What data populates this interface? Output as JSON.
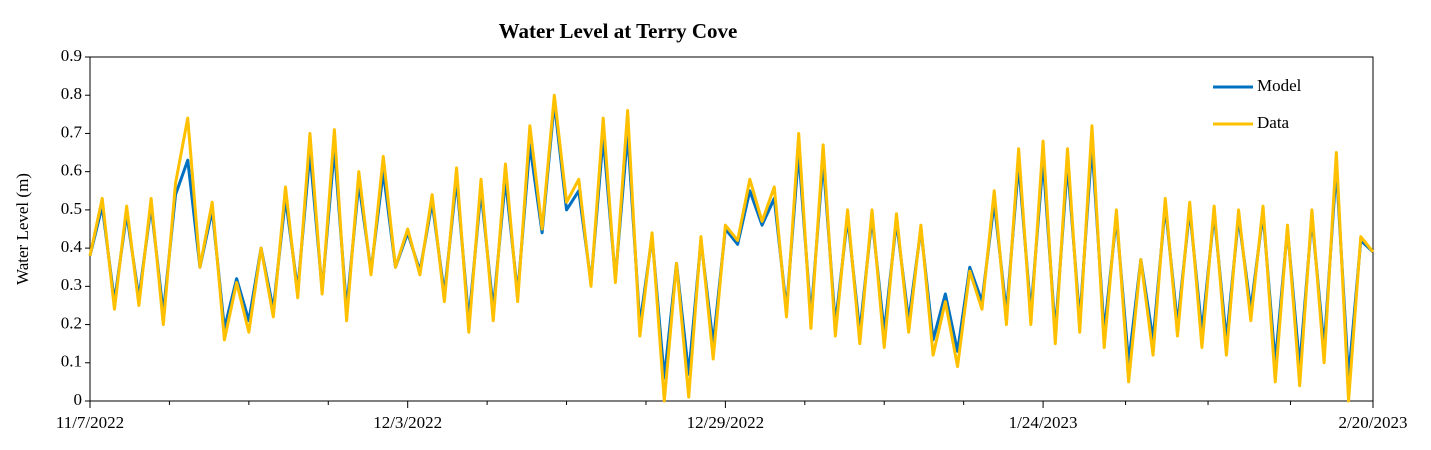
{
  "chart_data": {
    "type": "line",
    "title": "Water Level at Terry Cove",
    "y_label": "Water Level (m)",
    "x": [
      0,
      1,
      2,
      3,
      4,
      5,
      6,
      7,
      8,
      9,
      10,
      11,
      12,
      13,
      14,
      15,
      16,
      17,
      18,
      19,
      20,
      21,
      22,
      23,
      24,
      25,
      26,
      27,
      28,
      29,
      30,
      31,
      32,
      33,
      34,
      35,
      36,
      37,
      38,
      39,
      40,
      41,
      42,
      43,
      44,
      45,
      46,
      47,
      48,
      49,
      50,
      51,
      52,
      53,
      54,
      55,
      56,
      57,
      58,
      59,
      60,
      61,
      62,
      63,
      64,
      65,
      66,
      67,
      68,
      69,
      70,
      71,
      72,
      73,
      74,
      75,
      76,
      77,
      78,
      79,
      80,
      81,
      82,
      83,
      84,
      85,
      86,
      87,
      88,
      89,
      90,
      91,
      92,
      93,
      94,
      95,
      96,
      97,
      98,
      99,
      100,
      101,
      102,
      103,
      104,
      105
    ],
    "xlim": [
      0,
      105
    ],
    "xticks": [
      {
        "value": 0,
        "label": "11/7/2022"
      },
      {
        "value": 26,
        "label": "12/3/2022"
      },
      {
        "value": 52,
        "label": "12/29/2022"
      },
      {
        "value": 78,
        "label": "1/24/2023"
      },
      {
        "value": 105,
        "label": "2/20/2023"
      }
    ],
    "xminorticks": [
      6.5,
      13,
      19.5,
      32.5,
      39,
      45.5,
      58.5,
      65,
      71.5,
      84.75,
      91.5,
      98.25
    ],
    "ylim": [
      0,
      0.9
    ],
    "yticks": [
      0,
      0.1,
      0.2,
      0.3,
      0.4,
      0.5,
      0.6,
      0.7,
      0.8,
      0.9
    ],
    "legend": "upper right",
    "series": [
      {
        "name": "Model",
        "color": "#0070c0",
        "values": [
          0.38,
          0.51,
          0.26,
          0.49,
          0.27,
          0.51,
          0.23,
          0.54,
          0.63,
          0.35,
          0.5,
          0.19,
          0.32,
          0.21,
          0.4,
          0.24,
          0.53,
          0.29,
          0.65,
          0.29,
          0.66,
          0.24,
          0.57,
          0.34,
          0.6,
          0.35,
          0.44,
          0.34,
          0.52,
          0.28,
          0.58,
          0.21,
          0.55,
          0.24,
          0.58,
          0.28,
          0.67,
          0.44,
          0.78,
          0.5,
          0.55,
          0.31,
          0.69,
          0.32,
          0.7,
          0.2,
          0.43,
          0.06,
          0.36,
          0.07,
          0.42,
          0.15,
          0.45,
          0.41,
          0.55,
          0.46,
          0.53,
          0.24,
          0.65,
          0.22,
          0.63,
          0.2,
          0.48,
          0.18,
          0.48,
          0.18,
          0.47,
          0.21,
          0.45,
          0.16,
          0.28,
          0.13,
          0.35,
          0.26,
          0.52,
          0.23,
          0.62,
          0.23,
          0.63,
          0.18,
          0.62,
          0.21,
          0.67,
          0.18,
          0.48,
          0.1,
          0.37,
          0.16,
          0.51,
          0.2,
          0.5,
          0.18,
          0.49,
          0.16,
          0.48,
          0.24,
          0.49,
          0.1,
          0.45,
          0.09,
          0.48,
          0.14,
          0.61,
          0.06,
          0.42,
          0.39
        ]
      },
      {
        "name": "Data",
        "color": "#ffc000",
        "values": [
          0.38,
          0.53,
          0.24,
          0.51,
          0.25,
          0.53,
          0.2,
          0.57,
          0.74,
          0.35,
          0.52,
          0.16,
          0.31,
          0.18,
          0.4,
          0.22,
          0.56,
          0.27,
          0.7,
          0.28,
          0.71,
          0.21,
          0.6,
          0.33,
          0.64,
          0.35,
          0.45,
          0.33,
          0.54,
          0.26,
          0.61,
          0.18,
          0.58,
          0.21,
          0.62,
          0.26,
          0.72,
          0.45,
          0.8,
          0.52,
          0.58,
          0.3,
          0.74,
          0.31,
          0.76,
          0.17,
          0.44,
          0.0,
          0.36,
          0.01,
          0.43,
          0.11,
          0.46,
          0.42,
          0.58,
          0.47,
          0.56,
          0.22,
          0.7,
          0.19,
          0.67,
          0.17,
          0.5,
          0.15,
          0.5,
          0.14,
          0.49,
          0.18,
          0.46,
          0.12,
          0.26,
          0.09,
          0.34,
          0.24,
          0.55,
          0.2,
          0.66,
          0.2,
          0.68,
          0.15,
          0.66,
          0.18,
          0.72,
          0.14,
          0.5,
          0.05,
          0.37,
          0.12,
          0.53,
          0.17,
          0.52,
          0.14,
          0.51,
          0.12,
          0.5,
          0.21,
          0.51,
          0.05,
          0.46,
          0.04,
          0.5,
          0.1,
          0.65,
          0.0,
          0.43,
          0.39
        ]
      }
    ]
  }
}
